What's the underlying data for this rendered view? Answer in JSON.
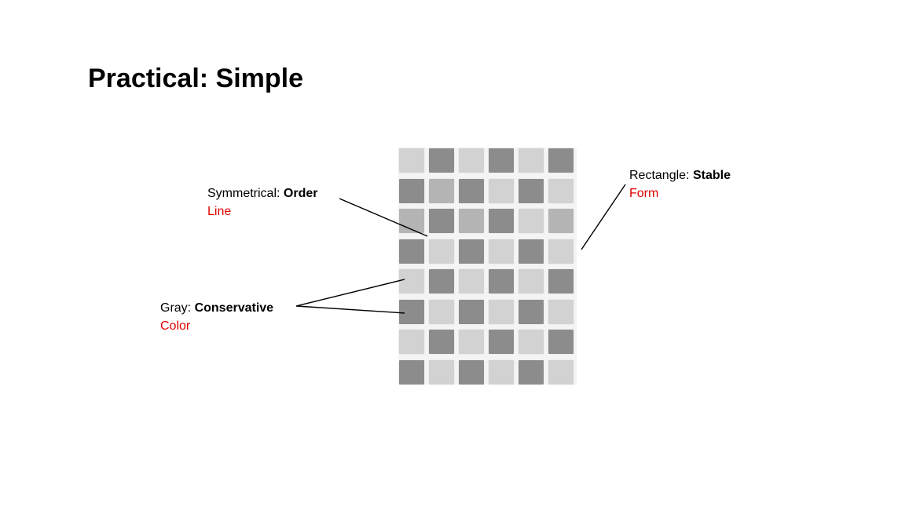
{
  "slide": {
    "title": "Practical: Simple"
  },
  "annotations": {
    "symmetrical": {
      "term": "Symmetrical:",
      "meaning": "Order",
      "category": "Line"
    },
    "gray": {
      "term": "Gray:",
      "meaning": "Conservative",
      "category": "Color"
    },
    "rectangle": {
      "term": "Rectangle:",
      "meaning": "Stable",
      "category": "Form"
    }
  },
  "colors": {
    "category_text": "#e00000",
    "tile_light": "#d2d2d2",
    "tile_mid": "#b4b4b4",
    "tile_dark": "#8c8c8c"
  },
  "tile_grid": {
    "rows": [
      [
        "light",
        "dark",
        "light",
        "dark",
        "light",
        "dark"
      ],
      [
        "dark",
        "mid",
        "dark",
        "light",
        "dark",
        "light"
      ],
      [
        "mid",
        "dark",
        "mid",
        "dark",
        "light",
        "mid"
      ],
      [
        "dark",
        "light",
        "dark",
        "light",
        "dark",
        "light"
      ],
      [
        "light",
        "dark",
        "light",
        "dark",
        "light",
        "dark"
      ],
      [
        "dark",
        "light",
        "dark",
        "light",
        "dark",
        "light"
      ],
      [
        "light",
        "dark",
        "light",
        "dark",
        "light",
        "dark"
      ],
      [
        "dark",
        "light",
        "dark",
        "light",
        "dark",
        "light"
      ]
    ]
  }
}
